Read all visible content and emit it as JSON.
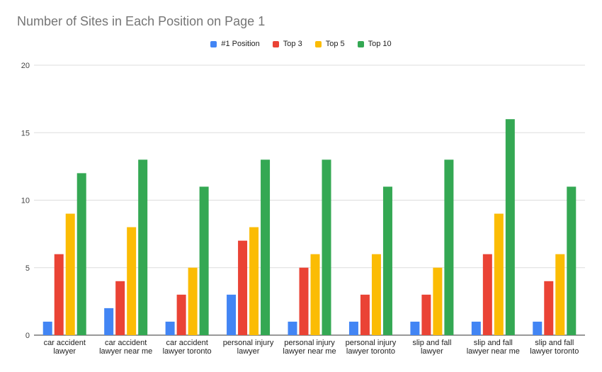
{
  "chart_data": {
    "type": "bar",
    "title": "Number of Sites in Each Position on Page 1",
    "xlabel": "",
    "ylabel": "",
    "ylim": [
      0,
      20
    ],
    "yticks": [
      "0",
      "5",
      "10",
      "15",
      "20"
    ],
    "grid": true,
    "legend_position": "top-center",
    "categories": [
      [
        "car accident",
        "lawyer"
      ],
      [
        "car accident",
        "lawyer near me"
      ],
      [
        "car accident",
        "lawyer toronto"
      ],
      [
        "personal injury",
        "lawyer"
      ],
      [
        "personal injury",
        "lawyer near me"
      ],
      [
        "personal injury",
        "lawyer toronto"
      ],
      [
        "slip and fall",
        "lawyer"
      ],
      [
        "slip and fall",
        "lawyer near me"
      ],
      [
        "slip and fall",
        "lawyer toronto"
      ]
    ],
    "series": [
      {
        "name": "#1 Position",
        "color": "#4285f4",
        "values": [
          1,
          2,
          1,
          3,
          1,
          1,
          1,
          1,
          1
        ]
      },
      {
        "name": "Top 3",
        "color": "#ea4335",
        "values": [
          6,
          4,
          3,
          7,
          5,
          3,
          3,
          6,
          4
        ]
      },
      {
        "name": "Top 5",
        "color": "#fbbc04",
        "values": [
          9,
          8,
          5,
          8,
          6,
          6,
          5,
          9,
          6
        ]
      },
      {
        "name": "Top 10",
        "color": "#34a853",
        "values": [
          12,
          13,
          11,
          13,
          13,
          11,
          13,
          16,
          11
        ]
      }
    ]
  }
}
